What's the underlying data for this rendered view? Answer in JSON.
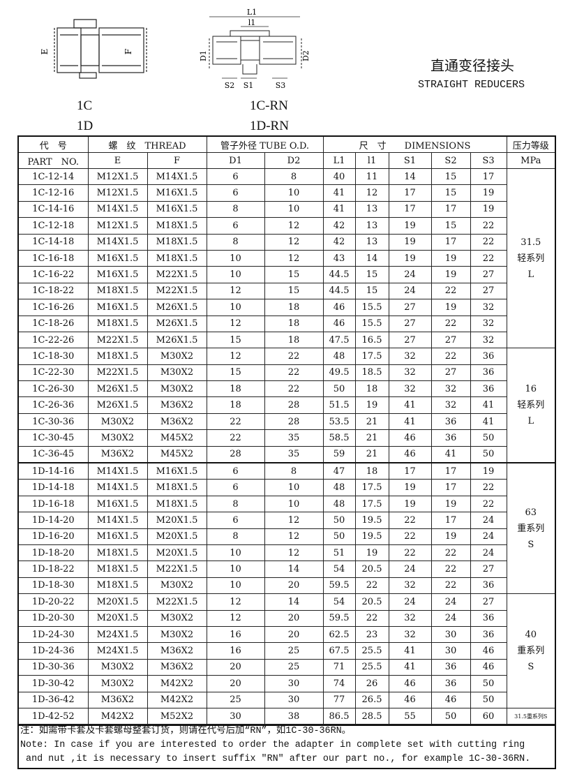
{
  "header": {
    "title_cn": "直通变径接头",
    "title_en": "STRAIGHT REDUCERS",
    "left_model": [
      "1C",
      "1D"
    ],
    "right_model": [
      "1C-RN",
      "1D-RN"
    ]
  },
  "drawings": {
    "left": {
      "labels": [
        "E",
        "F"
      ]
    },
    "right": {
      "labels": [
        "L1",
        "l1",
        "D1",
        "D2",
        "S2",
        "S1",
        "S3"
      ]
    }
  },
  "table": {
    "header_row1": [
      "代　号",
      "螺　纹　THREAD",
      "管子外径 TUBE O.D.",
      "尺　寸　　DIMENSIONS",
      "压力等级"
    ],
    "header_row2": [
      "PART　NO.",
      "E",
      "F",
      "D1",
      "D2",
      "L1",
      "l1",
      "S1",
      "S2",
      "S3",
      "MPa"
    ],
    "groups": [
      {
        "rows": [
          [
            "1C-12-14",
            "M12X1.5",
            "M14X1.5",
            "6",
            "8",
            "40",
            "11",
            "14",
            "15",
            "17"
          ],
          [
            "1C-12-16",
            "M12X1.5",
            "M16X1.5",
            "6",
            "10",
            "41",
            "12",
            "17",
            "15",
            "19"
          ],
          [
            "1C-14-16",
            "M14X1.5",
            "M16X1.5",
            "8",
            "10",
            "41",
            "13",
            "17",
            "17",
            "19"
          ],
          [
            "1C-12-18",
            "M12X1.5",
            "M18X1.5",
            "6",
            "12",
            "42",
            "13",
            "19",
            "15",
            "22"
          ],
          [
            "1C-14-18",
            "M14X1.5",
            "M18X1.5",
            "8",
            "12",
            "42",
            "13",
            "19",
            "17",
            "22"
          ],
          [
            "1C-16-18",
            "M16X1.5",
            "M18X1.5",
            "10",
            "12",
            "43",
            "14",
            "19",
            "19",
            "22"
          ],
          [
            "1C-16-22",
            "M16X1.5",
            "M22X1.5",
            "10",
            "15",
            "44.5",
            "15",
            "24",
            "19",
            "27"
          ],
          [
            "1C-18-22",
            "M18X1.5",
            "M22X1.5",
            "12",
            "15",
            "44.5",
            "15",
            "24",
            "22",
            "27"
          ],
          [
            "1C-16-26",
            "M16X1.5",
            "M26X1.5",
            "10",
            "18",
            "46",
            "15.5",
            "27",
            "19",
            "32"
          ],
          [
            "1C-18-26",
            "M18X1.5",
            "M26X1.5",
            "12",
            "18",
            "46",
            "15.5",
            "27",
            "22",
            "32"
          ],
          [
            "1C-22-26",
            "M22X1.5",
            "M26X1.5",
            "15",
            "18",
            "47.5",
            "16.5",
            "27",
            "27",
            "32"
          ]
        ],
        "pressure": [
          "31.5",
          "轻系列",
          "L"
        ]
      },
      {
        "rows": [
          [
            "1C-18-30",
            "M18X1.5",
            "M30X2",
            "12",
            "22",
            "48",
            "17.5",
            "32",
            "22",
            "36"
          ],
          [
            "1C-22-30",
            "M22X1.5",
            "M30X2",
            "15",
            "22",
            "49.5",
            "18.5",
            "32",
            "27",
            "36"
          ],
          [
            "1C-26-30",
            "M26X1.5",
            "M30X2",
            "18",
            "22",
            "50",
            "18",
            "32",
            "32",
            "36"
          ],
          [
            "1C-26-36",
            "M26X1.5",
            "M36X2",
            "18",
            "28",
            "51.5",
            "19",
            "41",
            "32",
            "41"
          ],
          [
            "1C-30-36",
            "M30X2",
            "M36X2",
            "22",
            "28",
            "53.5",
            "21",
            "41",
            "36",
            "41"
          ],
          [
            "1C-30-45",
            "M30X2",
            "M45X2",
            "22",
            "35",
            "58.5",
            "21",
            "46",
            "36",
            "50"
          ],
          [
            "1C-36-45",
            "M36X2",
            "M45X2",
            "28",
            "35",
            "59",
            "21",
            "46",
            "41",
            "50"
          ]
        ],
        "pressure": [
          "16",
          "轻系列",
          "L"
        ]
      },
      {
        "rows": [
          [
            "1D-14-16",
            "M14X1.5",
            "M16X1.5",
            "6",
            "8",
            "47",
            "18",
            "17",
            "17",
            "19"
          ],
          [
            "1D-14-18",
            "M14X1.5",
            "M18X1.5",
            "6",
            "10",
            "48",
            "17.5",
            "19",
            "17",
            "22"
          ],
          [
            "1D-16-18",
            "M16X1.5",
            "M18X1.5",
            "8",
            "10",
            "48",
            "17.5",
            "19",
            "19",
            "22"
          ],
          [
            "1D-14-20",
            "M14X1.5",
            "M20X1.5",
            "6",
            "12",
            "50",
            "19.5",
            "22",
            "17",
            "24"
          ],
          [
            "1D-16-20",
            "M16X1.5",
            "M20X1.5",
            "8",
            "12",
            "50",
            "19.5",
            "22",
            "19",
            "24"
          ],
          [
            "1D-18-20",
            "M18X1.5",
            "M20X1.5",
            "10",
            "12",
            "51",
            "19",
            "22",
            "22",
            "24"
          ],
          [
            "1D-18-22",
            "M18X1.5",
            "M22X1.5",
            "10",
            "14",
            "54",
            "20.5",
            "24",
            "22",
            "27"
          ],
          [
            "1D-18-30",
            "M18X1.5",
            "M30X2",
            "10",
            "20",
            "59.5",
            "22",
            "32",
            "22",
            "36"
          ]
        ],
        "pressure": [
          "63",
          "重系列",
          "S"
        ]
      },
      {
        "rows": [
          [
            "1D-20-22",
            "M20X1.5",
            "M22X1.5",
            "12",
            "14",
            "54",
            "20.5",
            "24",
            "24",
            "27"
          ],
          [
            "1D-20-30",
            "M20X1.5",
            "M30X2",
            "12",
            "20",
            "59.5",
            "22",
            "32",
            "24",
            "36"
          ],
          [
            "1D-24-30",
            "M24X1.5",
            "M30X2",
            "16",
            "20",
            "62.5",
            "23",
            "32",
            "30",
            "36"
          ],
          [
            "1D-24-36",
            "M24X1.5",
            "M36X2",
            "16",
            "25",
            "67.5",
            "25.5",
            "41",
            "30",
            "46"
          ],
          [
            "1D-30-36",
            "M30X2",
            "M36X2",
            "20",
            "25",
            "71",
            "25.5",
            "41",
            "36",
            "46"
          ],
          [
            "1D-30-42",
            "M30X2",
            "M42X2",
            "20",
            "30",
            "74",
            "26",
            "46",
            "36",
            "50"
          ],
          [
            "1D-36-42",
            "M36X2",
            "M42X2",
            "25",
            "30",
            "77",
            "26.5",
            "46",
            "46",
            "50"
          ]
        ],
        "pressure": [
          "40",
          "重系列",
          "S"
        ]
      },
      {
        "rows": [
          [
            "1D-42-52",
            "M42X2",
            "M52X2",
            "30",
            "38",
            "86.5",
            "28.5",
            "55",
            "50",
            "60"
          ]
        ],
        "pressure": [
          "31.5重系列S"
        ]
      }
    ]
  },
  "notes": [
    "注：如需带卡套及卡套螺母整套订货，则请在代号后加“RN”，如1C-30-36RN。",
    "Note: In case if you are interested to order the adapter in complete set with cutting ring",
    " and nut ,it is necessary to insert suffix \"RN\" after our part no., for example 1C-30-36RN."
  ]
}
